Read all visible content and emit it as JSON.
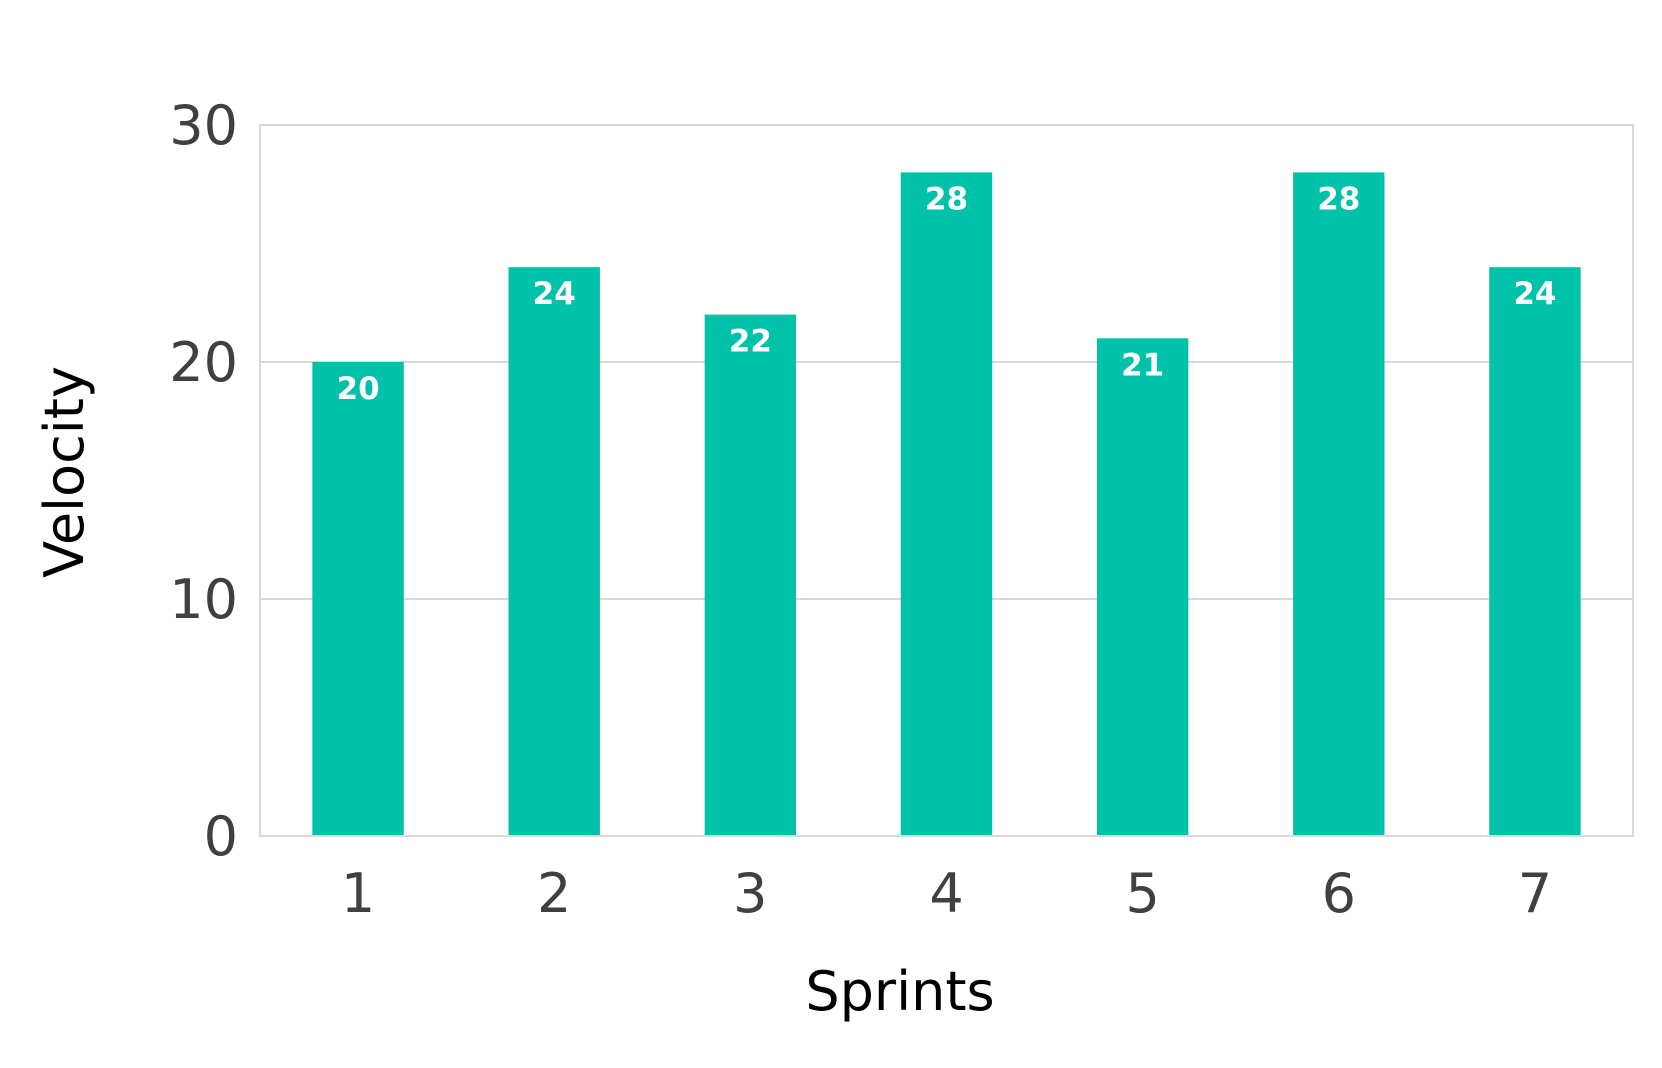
{
  "chart_data": {
    "type": "bar",
    "categories": [
      "1",
      "2",
      "3",
      "4",
      "5",
      "6",
      "7"
    ],
    "series": [
      {
        "values": [
          20,
          24,
          22,
          28,
          21,
          28,
          24
        ],
        "color": "#00c2a8"
      }
    ],
    "data_labels": [
      "20",
      "24",
      "22",
      "28",
      "21",
      "28",
      "24"
    ],
    "title": "",
    "xlabel": "Sprints",
    "ylabel": "Velocity",
    "ylim": [
      0,
      30
    ],
    "yticks": [
      0,
      10,
      20,
      30
    ],
    "ytick_labels": [
      "0",
      "10",
      "20",
      "30"
    ],
    "grid": true,
    "legend": "none",
    "colors": {
      "bar": "#00c2a8",
      "gridline": "#d9d9d9",
      "tick_label": "#404040",
      "data_label": "#ffffff"
    }
  }
}
